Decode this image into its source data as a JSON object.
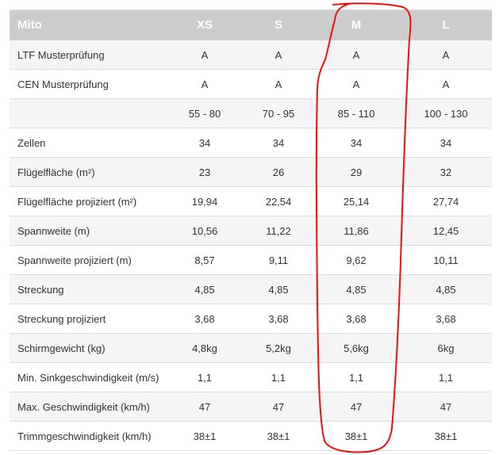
{
  "table": {
    "corner_label": "Mito",
    "sizes": [
      "XS",
      "S",
      "M",
      "L"
    ],
    "rows": [
      {
        "label": "LTF Musterprüfung",
        "values": [
          "A",
          "A",
          "A",
          "A"
        ]
      },
      {
        "label": "CEN Musterprüfung",
        "values": [
          "A",
          "A",
          "A",
          "A"
        ]
      },
      {
        "label": "",
        "values": [
          "55 - 80",
          "70 - 95",
          "85 - 110",
          "100 - 130"
        ]
      },
      {
        "label": "Zellen",
        "values": [
          "34",
          "34",
          "34",
          "34"
        ]
      },
      {
        "label": "Flügelfläche (m²)",
        "values": [
          "23",
          "26",
          "29",
          "32"
        ]
      },
      {
        "label": "Flügelfläche projiziert (m²)",
        "values": [
          "19,94",
          "22,54",
          "25,14",
          "27,74"
        ]
      },
      {
        "label": "Spannweite (m)",
        "values": [
          "10,56",
          "11,22",
          "11,86",
          "12,45"
        ]
      },
      {
        "label": "Spannweite projiziert (m)",
        "values": [
          "8,57",
          "9,11",
          "9,62",
          "10,11"
        ]
      },
      {
        "label": "Streckung",
        "values": [
          "4,85",
          "4,85",
          "4,85",
          "4,85"
        ]
      },
      {
        "label": "Streckung projiziert",
        "values": [
          "3,68",
          "3,68",
          "3,68",
          "3,68"
        ]
      },
      {
        "label": "Schirmgewicht (kg)",
        "values": [
          "4,8kg",
          "5,2kg",
          "5,6kg",
          "6kg"
        ]
      },
      {
        "label": "Min. Sinkgeschwindigkeit (m/s)",
        "values": [
          "1,1",
          "1,1",
          "1,1",
          "1,1"
        ]
      },
      {
        "label": "Max. Geschwindigkeit (km/h)",
        "values": [
          "47",
          "47",
          "47",
          "47"
        ]
      },
      {
        "label": "Trimmgeschwindigkeit (km/h)",
        "values": [
          "38±1",
          "38±1",
          "38±1",
          "38±1"
        ]
      }
    ]
  },
  "annotation": {
    "highlighted_size": "M",
    "color": "#e8140c"
  }
}
